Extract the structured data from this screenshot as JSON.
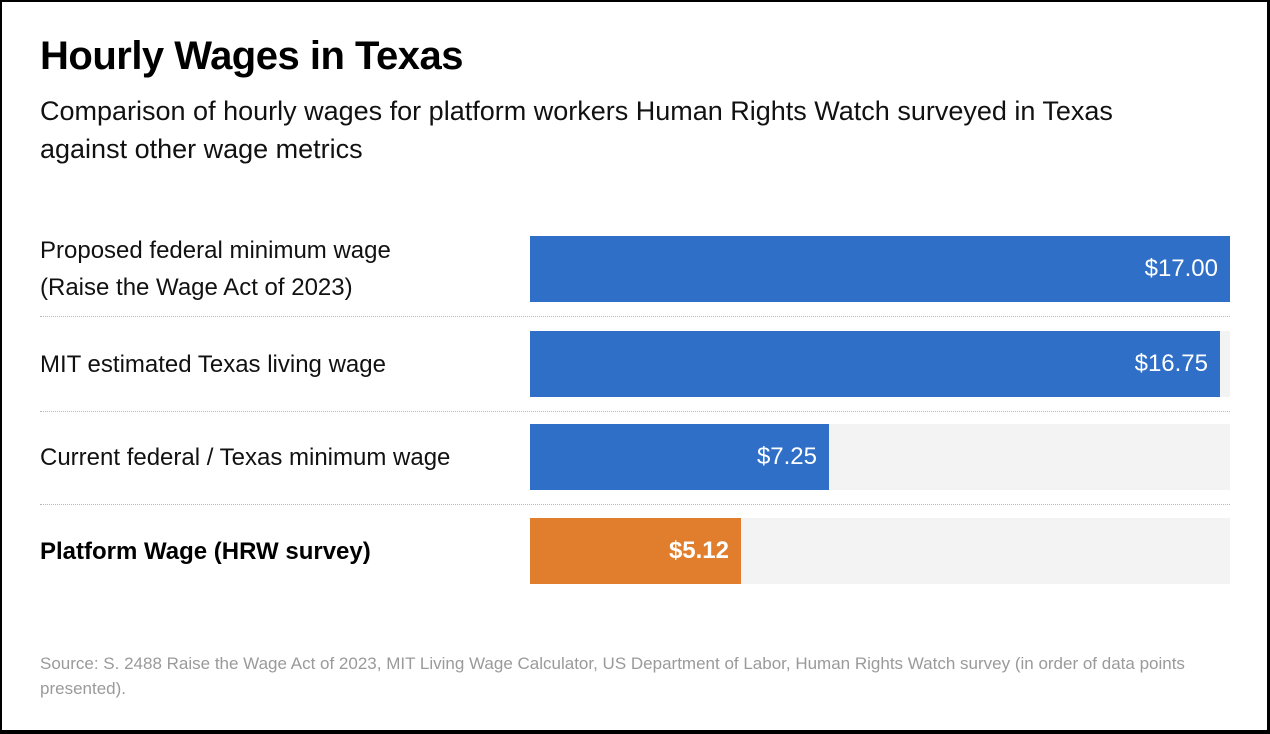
{
  "chart_data": {
    "type": "bar",
    "orientation": "horizontal",
    "title": "Hourly Wages in Texas",
    "subtitle": "Comparison of hourly wages for platform workers Human Rights Watch surveyed in Texas against other wage metrics",
    "xlabel": "",
    "ylabel": "",
    "xlim": [
      0,
      17
    ],
    "grid": false,
    "legend": "none",
    "categories": [
      "Proposed federal minimum wage (Raise the Wage Act of 2023)",
      "MIT estimated Texas living wage",
      "Current federal / Texas minimum wage",
      "Platform Wage (HRW survey)"
    ],
    "values": [
      17.0,
      16.75,
      7.25,
      5.12
    ],
    "data_labels": [
      "$17.00",
      "$16.75",
      "$7.25",
      "$5.12"
    ],
    "colors": [
      "#2f6fc7",
      "#2f6fc7",
      "#2f6fc7",
      "#e07e2e"
    ],
    "highlight_index": 3,
    "source": "Source: S. 2488 Raise the Wage Act of 2023, MIT Living Wage Calculator, US Department of Labor, Human Rights Watch survey (in order of data points presented)."
  },
  "rows": [
    {
      "label_lines": [
        "Proposed federal minimum wage",
        "(Raise the Wage Act of 2023)"
      ],
      "bold": false
    },
    {
      "label_lines": [
        "MIT estimated Texas living wage"
      ],
      "bold": false
    },
    {
      "label_lines": [
        "Current federal / Texas minimum wage"
      ],
      "bold": false
    },
    {
      "label_lines": [
        "Platform Wage (HRW survey)"
      ],
      "bold": true
    }
  ],
  "colors": {
    "bar_primary": "#2f6fc7",
    "bar_highlight": "#e07e2e",
    "track": "#f3f3f3",
    "source_text": "#9a9a9a"
  }
}
